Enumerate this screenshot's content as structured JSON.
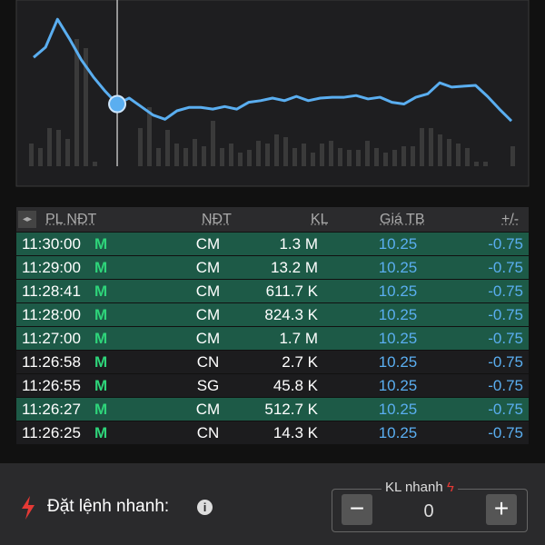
{
  "chart": {
    "type": "line",
    "line": [
      93,
      105,
      138,
      115,
      90,
      70,
      53,
      38,
      45,
      35,
      25,
      20,
      30,
      34,
      34,
      32,
      35,
      32,
      40,
      42,
      45,
      42,
      47,
      42,
      45,
      46,
      46,
      48,
      44,
      46,
      40,
      38,
      46,
      50,
      63,
      58,
      59,
      60,
      47,
      32,
      18
    ],
    "ylim": [
      0,
      150
    ],
    "selected": 7,
    "volume": [
      25,
      20,
      42,
      40,
      30,
      140,
      130,
      5,
      null,
      null,
      null,
      null,
      42,
      65,
      20,
      40,
      25,
      20,
      30,
      22,
      50,
      20,
      25,
      15,
      18,
      28,
      25,
      35,
      32,
      20,
      25,
      15,
      25,
      28,
      20,
      18,
      18,
      28,
      20,
      15,
      18,
      22,
      22,
      42,
      42,
      35,
      30,
      25,
      20,
      5,
      5,
      null,
      null,
      22
    ],
    "volume_lim": [
      0,
      150
    ],
    "line_color": "#5aaef0",
    "volume_color": "#3a3a3a"
  },
  "table": {
    "headers": [
      "PL NĐT",
      "NĐT",
      "KL",
      "Giá TB",
      "+/-"
    ],
    "rows": [
      {
        "time": "11:30:00",
        "side": "M",
        "investor": "CM",
        "volume": "1.3 M",
        "price": "10.25",
        "change": "-0.75",
        "highlighted": true
      },
      {
        "time": "11:29:00",
        "side": "M",
        "investor": "CM",
        "volume": "13.2 M",
        "price": "10.25",
        "change": "-0.75",
        "highlighted": true
      },
      {
        "time": "11:28:41",
        "side": "M",
        "investor": "CM",
        "volume": "611.7 K",
        "price": "10.25",
        "change": "-0.75",
        "highlighted": true
      },
      {
        "time": "11:28:00",
        "side": "M",
        "investor": "CM",
        "volume": "824.3 K",
        "price": "10.25",
        "change": "-0.75",
        "highlighted": true
      },
      {
        "time": "11:27:00",
        "side": "M",
        "investor": "CM",
        "volume": "1.7 M",
        "price": "10.25",
        "change": "-0.75",
        "highlighted": true
      },
      {
        "time": "11:26:58",
        "side": "M",
        "investor": "CN",
        "volume": "2.7 K",
        "price": "10.25",
        "change": "-0.75",
        "highlighted": false
      },
      {
        "time": "11:26:55",
        "side": "M",
        "investor": "SG",
        "volume": "45.8 K",
        "price": "10.25",
        "change": "-0.75",
        "highlighted": false
      },
      {
        "time": "11:26:27",
        "side": "M",
        "investor": "CM",
        "volume": "512.7 K",
        "price": "10.25",
        "change": "-0.75",
        "highlighted": true
      },
      {
        "time": "11:26:25",
        "side": "M",
        "investor": "CN",
        "volume": "14.3 K",
        "price": "10.25",
        "change": "-0.75",
        "highlighted": false
      }
    ]
  },
  "quick_order": {
    "label": "Đặt lệnh nhanh:",
    "box_label": "KL nhanh",
    "quantity": "0"
  }
}
